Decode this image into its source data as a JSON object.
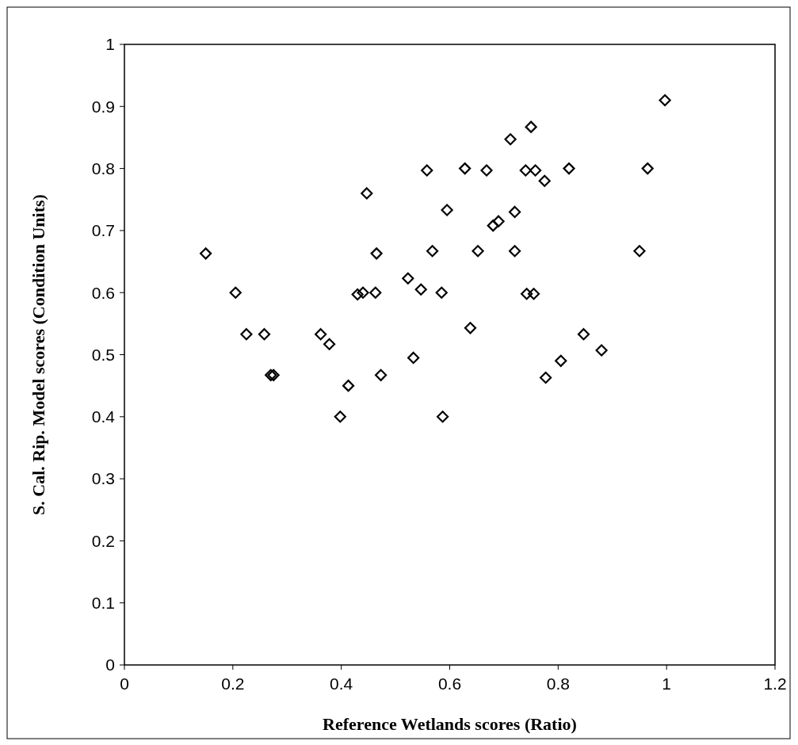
{
  "chart_data": {
    "type": "scatter",
    "xlabel": "Reference Wetlands scores (Ratio)",
    "ylabel": "S. Cal. Rip. Model scores (Condition Units)",
    "xlim": [
      0,
      1.2
    ],
    "xticks": [
      0,
      0.2,
      0.4,
      0.6,
      0.8,
      1,
      1.2
    ],
    "ylim": [
      0,
      1
    ],
    "yticks": [
      0,
      0.1,
      0.2,
      0.3,
      0.4,
      0.5,
      0.6,
      0.7,
      0.8,
      0.9,
      1
    ],
    "grid": false,
    "marker": "diamond",
    "series": [
      {
        "color": "#000000",
        "x": [
          0.15,
          0.205,
          0.225,
          0.258,
          0.27,
          0.275,
          0.362,
          0.378,
          0.398,
          0.413,
          0.43,
          0.44,
          0.447,
          0.463,
          0.465,
          0.473,
          0.523,
          0.533,
          0.547,
          0.558,
          0.568,
          0.585,
          0.587,
          0.595,
          0.628,
          0.638,
          0.652,
          0.668,
          0.68,
          0.69,
          0.712,
          0.72,
          0.72,
          0.74,
          0.742,
          0.75,
          0.755,
          0.758,
          0.775,
          0.777,
          0.805,
          0.82,
          0.847,
          0.88,
          0.95,
          0.965,
          0.997
        ],
        "values": [
          0.663,
          0.6,
          0.533,
          0.533,
          0.467,
          0.467,
          0.533,
          0.517,
          0.4,
          0.45,
          0.597,
          0.6,
          0.76,
          0.6,
          0.663,
          0.467,
          0.623,
          0.495,
          0.605,
          0.797,
          0.667,
          0.6,
          0.4,
          0.733,
          0.8,
          0.543,
          0.667,
          0.797,
          0.708,
          0.715,
          0.847,
          0.73,
          0.667,
          0.797,
          0.598,
          0.867,
          0.598,
          0.797,
          0.78,
          0.463,
          0.49,
          0.8,
          0.533,
          0.507,
          0.667,
          0.8,
          0.91
        ]
      }
    ]
  }
}
